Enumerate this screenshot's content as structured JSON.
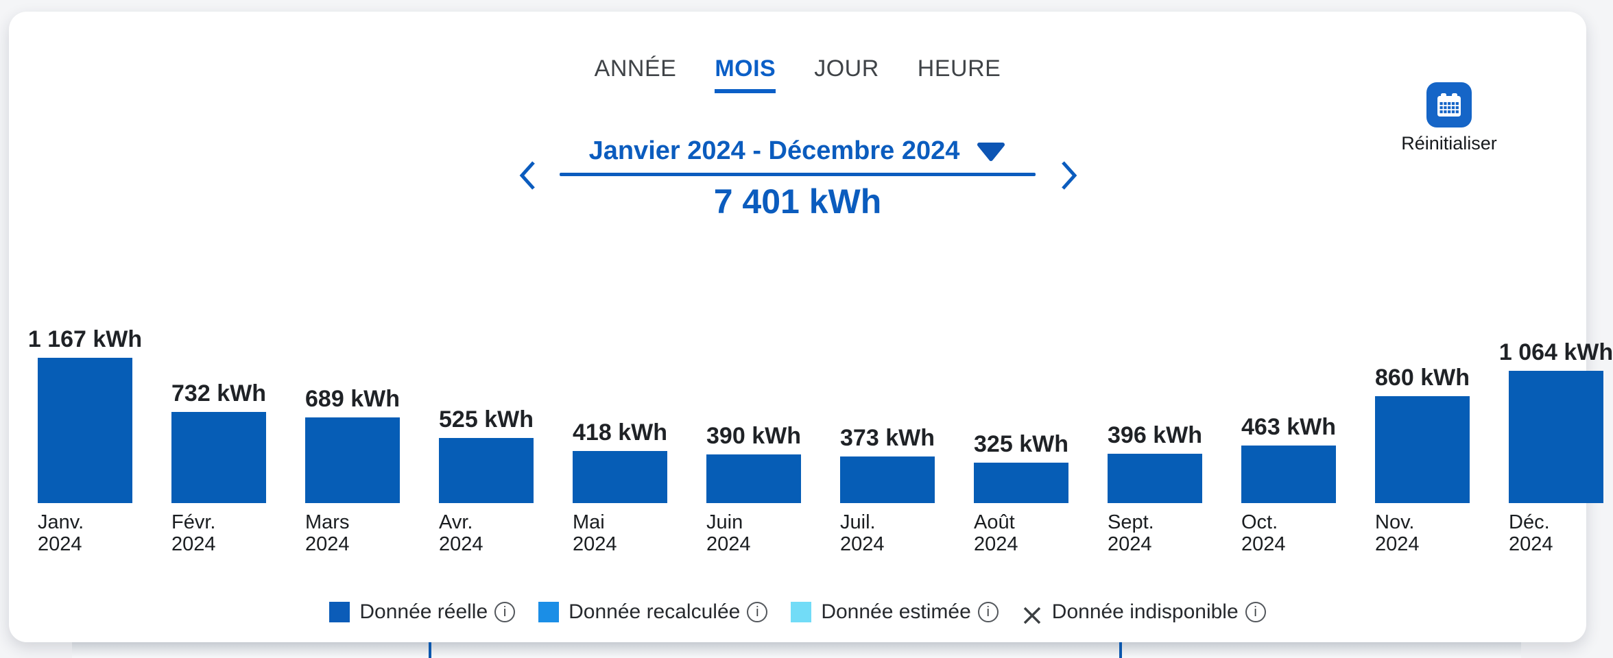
{
  "tabs": [
    {
      "id": "annee",
      "label": "ANNÉE",
      "active": false
    },
    {
      "id": "mois",
      "label": "MOIS",
      "active": true
    },
    {
      "id": "jour",
      "label": "JOUR",
      "active": false
    },
    {
      "id": "heure",
      "label": "HEURE",
      "active": false
    }
  ],
  "period": {
    "range_label": "Janvier 2024 - Décembre 2024",
    "total": "7 401 kWh"
  },
  "reset_label": "Réinitialiser",
  "chart_data": {
    "type": "bar",
    "unit": "kWh",
    "categories": [
      "Janv. 2024",
      "Févr. 2024",
      "Mars 2024",
      "Avr. 2024",
      "Mai 2024",
      "Juin 2024",
      "Juil. 2024",
      "Août 2024",
      "Sept. 2024",
      "Oct. 2024",
      "Nov. 2024",
      "Déc. 2024"
    ],
    "month_names": [
      "Janv.",
      "Févr.",
      "Mars",
      "Avr.",
      "Mai",
      "Juin",
      "Juil.",
      "Août",
      "Sept.",
      "Oct.",
      "Nov.",
      "Déc."
    ],
    "year": "2024",
    "values": [
      1167,
      732,
      689,
      525,
      418,
      390,
      373,
      325,
      396,
      463,
      860,
      1064
    ],
    "value_labels": [
      "1 167 kWh",
      "732 kWh",
      "689 kWh",
      "525 kWh",
      "418 kWh",
      "390 kWh",
      "373 kWh",
      "325 kWh",
      "396 kWh",
      "463 kWh",
      "860 kWh",
      "1 064 kWh"
    ],
    "total_value": 7401,
    "total_label": "7 401 kWh",
    "bar_color": "#065db6",
    "ylim": [
      0,
      1200
    ],
    "grid": false,
    "legend_position": "bottom"
  },
  "legend": {
    "items": [
      {
        "label": "Donnée réelle",
        "marker": "square",
        "color": "#0b5cb8"
      },
      {
        "label": "Donnée recalculée",
        "marker": "square",
        "color": "#1b8ee6"
      },
      {
        "label": "Donnée estimée",
        "marker": "square",
        "color": "#72dcf7"
      },
      {
        "label": "Donnée indisponible",
        "marker": "cross",
        "color": "#3c4043"
      }
    ],
    "info_glyph": "i"
  },
  "colors": {
    "accent": "#0b5cbe",
    "bar": "#065db6",
    "tab_active": "#0b5fc7",
    "tab_inactive": "#3f4347",
    "calendar_button": "#1565c7"
  }
}
